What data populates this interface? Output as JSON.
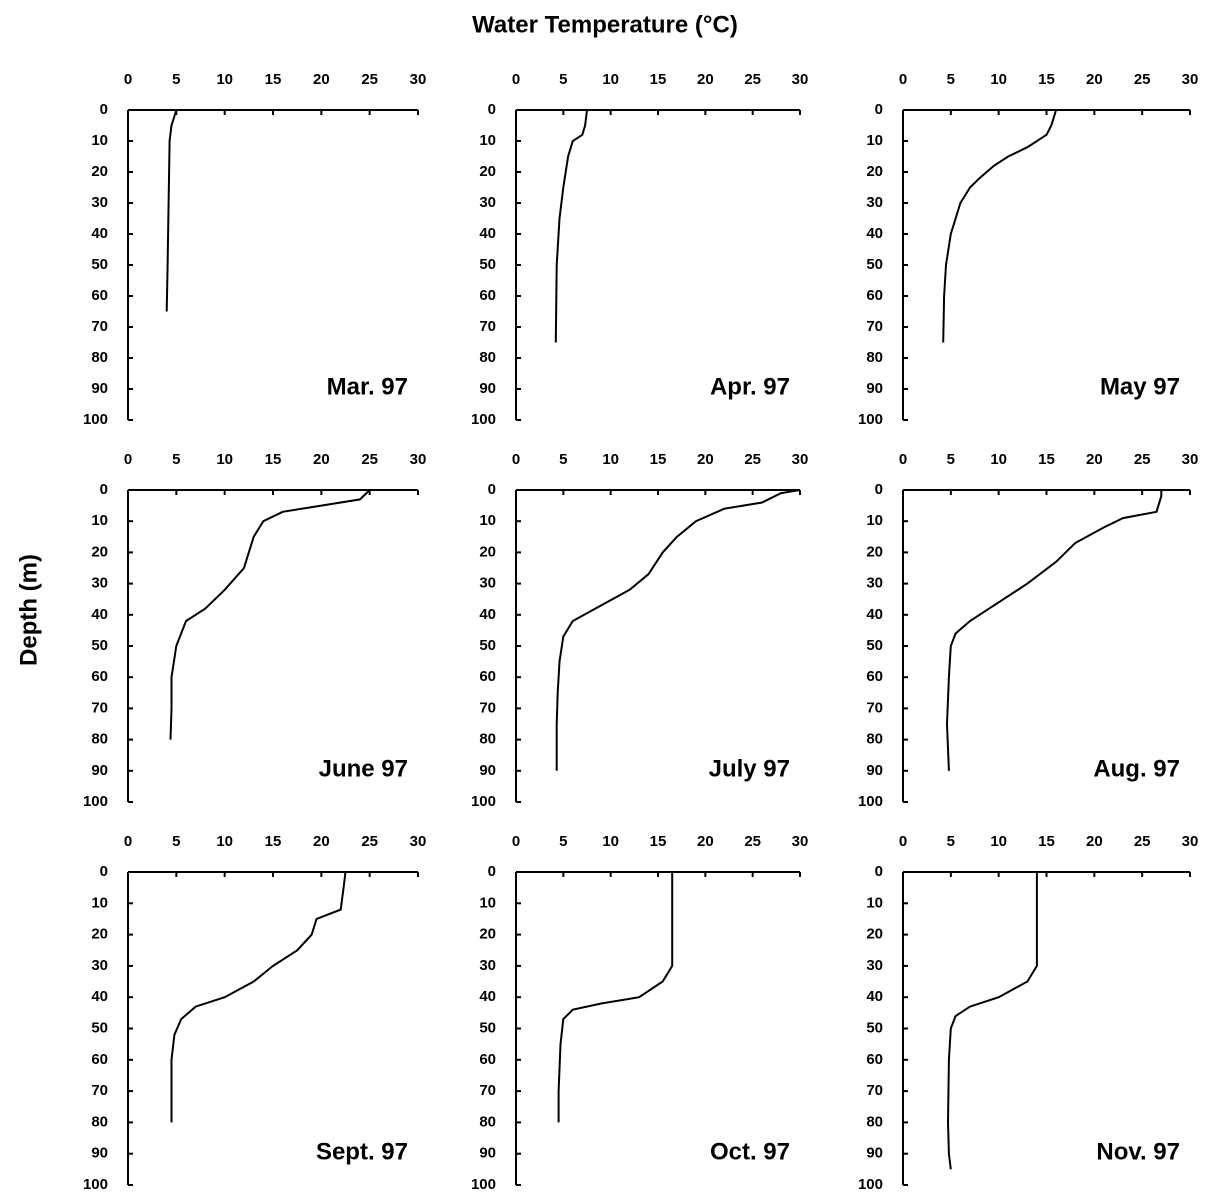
{
  "figure": {
    "xlabel": "Water Temperature (°C)",
    "ylabel": "Depth (m)"
  },
  "chart_data": [
    {
      "type": "line",
      "title": "Mar. 97",
      "color": "#000000",
      "y_inverted": true,
      "xlim": [
        0,
        30
      ],
      "xticks": [
        0,
        5,
        10,
        15,
        20,
        25,
        30
      ],
      "ylim": [
        0,
        100
      ],
      "yticks": [
        0,
        10,
        20,
        30,
        40,
        50,
        60,
        70,
        80,
        90,
        100
      ],
      "depth": [
        0,
        2,
        5,
        10,
        30,
        50,
        65
      ],
      "values": [
        5,
        4.8,
        4.5,
        4.3,
        4.2,
        4.1,
        4
      ]
    },
    {
      "type": "line",
      "title": "Apr. 97",
      "color": "#000000",
      "y_inverted": true,
      "xlim": [
        0,
        30
      ],
      "xticks": [
        0,
        5,
        10,
        15,
        20,
        25,
        30
      ],
      "ylim": [
        0,
        100
      ],
      "yticks": [
        0,
        10,
        20,
        30,
        40,
        50,
        60,
        70,
        80,
        90,
        100
      ],
      "depth": [
        0,
        5,
        8,
        10,
        15,
        25,
        35,
        50,
        75
      ],
      "values": [
        7.5,
        7.3,
        7,
        6,
        5.5,
        5,
        4.6,
        4.3,
        4.2
      ]
    },
    {
      "type": "line",
      "title": "May 97",
      "color": "#000000",
      "y_inverted": true,
      "xlim": [
        0,
        30
      ],
      "xticks": [
        0,
        5,
        10,
        15,
        20,
        25,
        30
      ],
      "ylim": [
        0,
        100
      ],
      "yticks": [
        0,
        10,
        20,
        30,
        40,
        50,
        60,
        70,
        80,
        90,
        100
      ],
      "depth": [
        0,
        5,
        8,
        12,
        15,
        18,
        22,
        25,
        30,
        40,
        50,
        60,
        75
      ],
      "values": [
        16,
        15.5,
        15,
        13,
        11,
        9.5,
        8,
        7,
        6,
        5,
        4.5,
        4.3,
        4.2
      ]
    },
    {
      "type": "line",
      "title": "June 97",
      "color": "#000000",
      "y_inverted": true,
      "xlim": [
        0,
        30
      ],
      "xticks": [
        0,
        5,
        10,
        15,
        20,
        25,
        30
      ],
      "ylim": [
        0,
        100
      ],
      "yticks": [
        0,
        10,
        20,
        30,
        40,
        50,
        60,
        70,
        80,
        90,
        100
      ],
      "depth": [
        0,
        3,
        5,
        7,
        10,
        15,
        20,
        25,
        32,
        38,
        42,
        50,
        60,
        70,
        80
      ],
      "values": [
        25,
        24,
        20,
        16,
        14,
        13,
        12.5,
        12,
        10,
        8,
        6,
        5,
        4.5,
        4.5,
        4.4
      ]
    },
    {
      "type": "line",
      "title": "July 97",
      "color": "#000000",
      "y_inverted": true,
      "xlim": [
        0,
        30
      ],
      "xticks": [
        0,
        5,
        10,
        15,
        20,
        25,
        30
      ],
      "ylim": [
        0,
        100
      ],
      "yticks": [
        0,
        10,
        20,
        30,
        40,
        50,
        60,
        70,
        80,
        90,
        100
      ],
      "depth": [
        0,
        1,
        4,
        6,
        10,
        15,
        20,
        27,
        32,
        37,
        42,
        47,
        55,
        65,
        75,
        90
      ],
      "values": [
        30,
        28,
        26,
        22,
        19,
        17,
        15.5,
        14,
        12,
        9,
        6,
        5,
        4.6,
        4.4,
        4.3,
        4.3
      ]
    },
    {
      "type": "line",
      "title": "Aug. 97",
      "color": "#000000",
      "y_inverted": true,
      "xlim": [
        0,
        30
      ],
      "xticks": [
        0,
        5,
        10,
        15,
        20,
        25,
        30
      ],
      "ylim": [
        0,
        100
      ],
      "yticks": [
        0,
        10,
        20,
        30,
        40,
        50,
        60,
        70,
        80,
        90,
        100
      ],
      "depth": [
        0,
        2,
        7,
        9,
        12,
        17,
        23,
        30,
        36,
        42,
        46,
        50,
        60,
        75,
        90
      ],
      "values": [
        27,
        27,
        26.5,
        23,
        21,
        18,
        16,
        13,
        10,
        7,
        5.5,
        5,
        4.8,
        4.6,
        4.8
      ]
    },
    {
      "type": "line",
      "title": "Sept. 97",
      "color": "#000000",
      "y_inverted": true,
      "xlim": [
        0,
        30
      ],
      "xticks": [
        0,
        5,
        10,
        15,
        20,
        25,
        30
      ],
      "ylim": [
        0,
        100
      ],
      "yticks": [
        0,
        10,
        20,
        30,
        40,
        50,
        60,
        70,
        80,
        90,
        100
      ],
      "depth": [
        0,
        5,
        12,
        15,
        20,
        25,
        30,
        35,
        40,
        43,
        47,
        52,
        60,
        80
      ],
      "values": [
        22.5,
        22.3,
        22,
        19.5,
        19,
        17.5,
        15,
        13,
        10,
        7,
        5.5,
        4.8,
        4.5,
        4.5
      ]
    },
    {
      "type": "line",
      "title": "Oct. 97",
      "color": "#000000",
      "y_inverted": true,
      "xlim": [
        0,
        30
      ],
      "xticks": [
        0,
        5,
        10,
        15,
        20,
        25,
        30
      ],
      "ylim": [
        0,
        100
      ],
      "yticks": [
        0,
        10,
        20,
        30,
        40,
        50,
        60,
        70,
        80,
        90,
        100
      ],
      "depth": [
        0,
        30,
        35,
        40,
        42,
        44,
        47,
        55,
        70,
        80
      ],
      "values": [
        16.5,
        16.5,
        15.5,
        13,
        9,
        6,
        5,
        4.7,
        4.5,
        4.5
      ]
    },
    {
      "type": "line",
      "title": "Nov. 97",
      "color": "#000000",
      "y_inverted": true,
      "xlim": [
        0,
        30
      ],
      "xticks": [
        0,
        5,
        10,
        15,
        20,
        25,
        30
      ],
      "ylim": [
        0,
        100
      ],
      "yticks": [
        0,
        10,
        20,
        30,
        40,
        50,
        60,
        70,
        80,
        90,
        100
      ],
      "depth": [
        0,
        10,
        30,
        35,
        40,
        43,
        46,
        50,
        60,
        80,
        90,
        95
      ],
      "values": [
        14,
        14,
        14,
        13,
        10,
        7,
        5.5,
        5,
        4.8,
        4.7,
        4.8,
        5
      ]
    }
  ]
}
